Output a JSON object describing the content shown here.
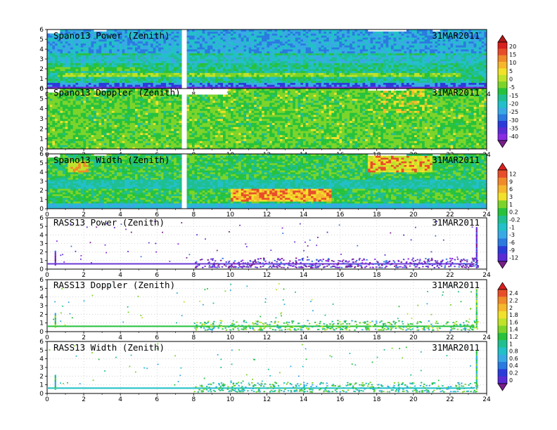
{
  "palettes": {
    "cb1": [
      "#7a1e8a",
      "#8a2be2",
      "#5b2bd6",
      "#2b3bd9",
      "#2a7ae0",
      "#39a9e6",
      "#22c0c8",
      "#1fbf92",
      "#27c23c",
      "#7cd42a",
      "#bfe22a",
      "#f2e12a",
      "#f6b72c",
      "#f08a2a",
      "#e84d2a",
      "#d8201e",
      "#b01818"
    ],
    "cb2": [
      "#7a1e8a",
      "#5b2bd6",
      "#2b3bd9",
      "#2a7ae0",
      "#39a9e6",
      "#22c0c8",
      "#1fbf92",
      "#27c23c",
      "#7cd42a",
      "#f2e12a",
      "#f6b72c",
      "#f08a2a",
      "#e84d2a",
      "#d8201e"
    ],
    "cb3": [
      "#7a1e8a",
      "#5b2bd6",
      "#2b3bd9",
      "#2a7ae0",
      "#39a9e6",
      "#22c0c8",
      "#1fbf92",
      "#27c23c",
      "#7cd42a",
      "#bfe22a",
      "#f2e12a",
      "#f6b72c",
      "#f08a2a",
      "#e84d2a",
      "#d8201e"
    ]
  },
  "chart_data": [
    {
      "type": "heatmap",
      "panel_id": "p1",
      "title": "Spano13 Power (Zenith)",
      "date": "31MAR2011",
      "x_ticks": [
        0,
        2,
        4,
        6,
        8,
        10,
        12,
        14,
        16,
        18,
        20,
        22,
        24
      ],
      "y_ticks": [
        0,
        1,
        2,
        3,
        4,
        5,
        6
      ],
      "xlim": [
        0,
        24
      ],
      "ylim": [
        0,
        6
      ],
      "gap_hours": [
        7.3,
        7.55
      ],
      "base_color_index": 6
    },
    {
      "type": "heatmap",
      "panel_id": "p2",
      "title": "Spano13 Doppler (Zenith)",
      "date": "31MAR2011",
      "x_ticks": [
        0,
        2,
        4,
        6,
        8,
        10,
        12,
        14,
        16,
        18,
        20,
        22,
        24
      ],
      "y_ticks": [
        0,
        1,
        2,
        3,
        4,
        5,
        6
      ],
      "xlim": [
        0,
        24
      ],
      "ylim": [
        0,
        6
      ],
      "gap_hours": [
        7.3,
        7.55
      ],
      "base_color_index": 8
    },
    {
      "type": "heatmap",
      "panel_id": "p3",
      "title": "Spano13 Width (Zenith)",
      "date": "31MAR2011",
      "x_ticks": [
        0,
        2,
        4,
        6,
        8,
        10,
        12,
        14,
        16,
        18,
        20,
        22,
        24
      ],
      "y_ticks": [
        0,
        1,
        2,
        3,
        4,
        5,
        6
      ],
      "xlim": [
        0,
        24
      ],
      "ylim": [
        0,
        6
      ],
      "gap_hours": [
        7.3,
        7.55
      ],
      "base_color_index": 7
    },
    {
      "type": "scatter",
      "panel_id": "p4",
      "title": "RASS13 Power (Zenith)",
      "date": "31MAR2011",
      "x_ticks": [
        0,
        2,
        4,
        6,
        8,
        10,
        12,
        14,
        16,
        18,
        20,
        22,
        24
      ],
      "y_ticks": [
        0,
        1,
        2,
        3,
        4,
        5,
        6
      ],
      "xlim": [
        0,
        24
      ],
      "ylim": [
        0,
        6
      ],
      "grid": true
    },
    {
      "type": "scatter",
      "panel_id": "p5",
      "title": "RASS13 Doppler (Zenith)",
      "date": "31MAR2011",
      "x_ticks": [
        0,
        2,
        4,
        6,
        8,
        10,
        12,
        14,
        16,
        18,
        20,
        22,
        24
      ],
      "y_ticks": [
        0,
        1,
        2,
        3,
        4,
        5,
        6
      ],
      "xlim": [
        0,
        24
      ],
      "ylim": [
        0,
        6
      ],
      "grid": true
    },
    {
      "type": "scatter",
      "panel_id": "p6",
      "title": "RASS13 Width (Zenith)",
      "date": "31MAR2011",
      "x_ticks": [
        0,
        2,
        4,
        6,
        8,
        10,
        12,
        14,
        16,
        18,
        20,
        22,
        24
      ],
      "y_ticks": [
        0,
        1,
        2,
        3,
        4,
        5,
        6
      ],
      "xlim": [
        0,
        24
      ],
      "ylim": [
        0,
        6
      ],
      "grid": true
    }
  ],
  "colorbars": [
    {
      "id": "cb1",
      "labels": [
        "20",
        "15",
        "10",
        "5",
        "0",
        "-5",
        "-15",
        "-20",
        "-25",
        "-30",
        "-35",
        "-40"
      ]
    },
    {
      "id": "cb2",
      "labels": [
        "12",
        "9",
        "6",
        "3",
        "1",
        "0.2",
        "-0.2",
        "-1",
        "-3",
        "-6",
        "-9",
        "-12"
      ]
    },
    {
      "id": "cb3",
      "labels": [
        "2.4",
        "2.2",
        "2",
        "1.8",
        "1.6",
        "1.4",
        "1.2",
        "1",
        "0.8",
        "0.6",
        "0.4",
        "0.2",
        "0"
      ]
    }
  ]
}
